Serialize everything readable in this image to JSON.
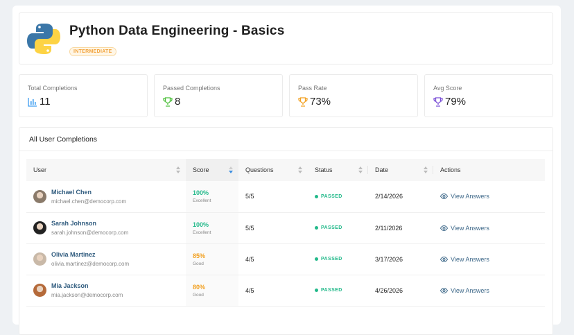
{
  "header": {
    "title": "Python Data Engineering - Basics",
    "level_badge": "INTERMEDIATE"
  },
  "stats": [
    {
      "label": "Total Completions",
      "value": "11",
      "icon": "bar-chart-icon",
      "color": "#3b9cf0"
    },
    {
      "label": "Passed Completions",
      "value": "8",
      "icon": "trophy-icon",
      "color": "#4cbf3a"
    },
    {
      "label": "Pass Rate",
      "value": "73%",
      "icon": "trophy-icon",
      "color": "#f2a020"
    },
    {
      "label": "Avg Score",
      "value": "79%",
      "icon": "trophy-icon",
      "color": "#7a4fd6"
    }
  ],
  "table": {
    "title": "All User Completions",
    "columns": [
      "User",
      "Score",
      "Questions",
      "Status",
      "Date",
      "Actions"
    ],
    "rows": [
      {
        "name": "Michael Chen",
        "email": "michael.chen@democorp.com",
        "score": "100%",
        "grade": "Excellent",
        "score_color": "#22b98a",
        "questions": "5/5",
        "status": "PASSED",
        "date": "2/14/2026",
        "action": "View Answers"
      },
      {
        "name": "Sarah Johnson",
        "email": "sarah.johnson@democorp.com",
        "score": "100%",
        "grade": "Excellent",
        "score_color": "#22b98a",
        "questions": "5/5",
        "status": "PASSED",
        "date": "2/11/2026",
        "action": "View Answers"
      },
      {
        "name": "Olivia Martinez",
        "email": "olivia.martinez@democorp.com",
        "score": "85%",
        "grade": "Good",
        "score_color": "#f2a020",
        "questions": "4/5",
        "status": "PASSED",
        "date": "3/17/2026",
        "action": "View Answers"
      },
      {
        "name": "Mia Jackson",
        "email": "mia.jackson@democorp.com",
        "score": "80%",
        "grade": "Good",
        "score_color": "#f2a020",
        "questions": "4/5",
        "status": "PASSED",
        "date": "4/26/2026",
        "action": "View Answers"
      }
    ]
  }
}
